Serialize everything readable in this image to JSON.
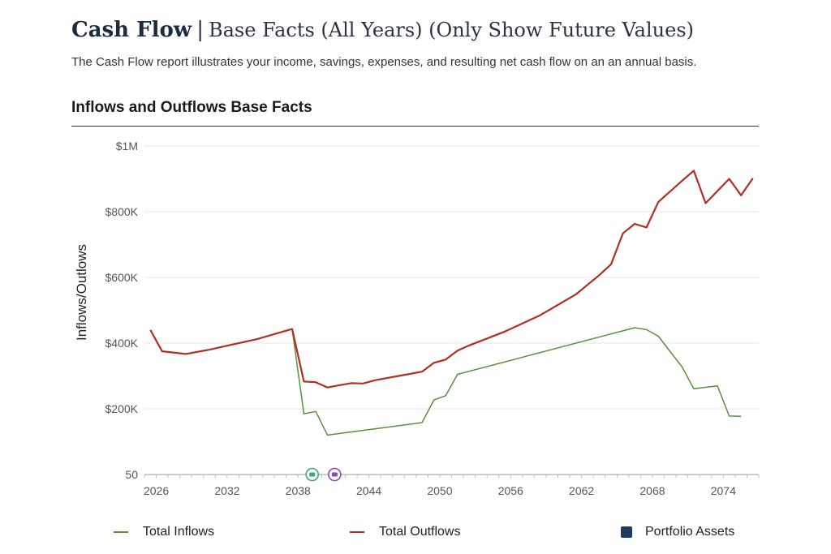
{
  "header": {
    "title": "Cash Flow",
    "separator": "|",
    "subtitle": "Base Facts (All Years) (Only Show Future Values)",
    "description": "The Cash Flow report illustrates your income, savings, expenses, and resulting net cash flow on an an annual basis."
  },
  "section": {
    "title": "Inflows and Outflows Base Facts"
  },
  "chart_data": {
    "type": "line",
    "title": "Inflows and Outflows Base Facts",
    "xlabel": "",
    "ylabel": "Inflows/Outlows",
    "xlim": [
      2025,
      2077
    ],
    "ylim": [
      50,
      1000000
    ],
    "x_ticks": [
      2026,
      2032,
      2038,
      2044,
      2050,
      2056,
      2062,
      2068,
      2074
    ],
    "y_ticks": [
      {
        "value": 50,
        "label": "50"
      },
      {
        "value": 200000,
        "label": "$200K"
      },
      {
        "value": 400000,
        "label": "$400K"
      },
      {
        "value": 600000,
        "label": "$600K"
      },
      {
        "value": 800000,
        "label": "$800K"
      },
      {
        "value": 1000000,
        "label": "$1M"
      }
    ],
    "grid": true,
    "legend_position": "bottom",
    "series": [
      {
        "name": "Total Inflows",
        "color": "#5a8f3c",
        "x": [
          2037.5,
          2038.5,
          2039.5,
          2040.5,
          2048.5,
          2049.5,
          2050.5,
          2051.5,
          2066.5,
          2067.5,
          2068.5,
          2069.5,
          2070.5,
          2071.5,
          2073.5,
          2074.5,
          2075.5
        ],
        "values": [
          443000,
          185000,
          192000,
          120000,
          158000,
          227000,
          240000,
          305000,
          447000,
          441000,
          421000,
          374000,
          328000,
          261000,
          270000,
          178000,
          177000
        ]
      },
      {
        "name": "Total Outflows",
        "color": "#b03020",
        "x": [
          2025.5,
          2026.5,
          2028.5,
          2030.5,
          2032.5,
          2034.5,
          2037.5,
          2038.5,
          2039.5,
          2040.5,
          2041.5,
          2042.5,
          2043.5,
          2044.5,
          2046.5,
          2048.5,
          2049.5,
          2050.5,
          2051.5,
          2052.5,
          2055.5,
          2058.5,
          2061.5,
          2063.5,
          2064.5,
          2065.5,
          2066.5,
          2067.5,
          2068.5,
          2070.5,
          2071.5,
          2072.5,
          2074.5,
          2075.5,
          2076.5
        ],
        "values": [
          440000,
          375000,
          367000,
          380000,
          396000,
          412000,
          443000,
          283000,
          281000,
          265000,
          272000,
          278000,
          277000,
          287000,
          300000,
          313000,
          340000,
          350000,
          377000,
          393000,
          435000,
          485000,
          548000,
          607000,
          640000,
          734000,
          763000,
          752000,
          830000,
          894000,
          925000,
          826000,
          900000,
          850000,
          902000
        ]
      }
    ],
    "legend_extra": [
      {
        "name": "Portfolio Assets",
        "color": "#1f3a5f",
        "marker": "square"
      }
    ],
    "annotations": [
      {
        "x": 2039.2,
        "color": "#3aa87a",
        "marker": "circle"
      },
      {
        "x": 2041.1,
        "color": "#8a4bb5",
        "marker": "circle"
      }
    ]
  }
}
